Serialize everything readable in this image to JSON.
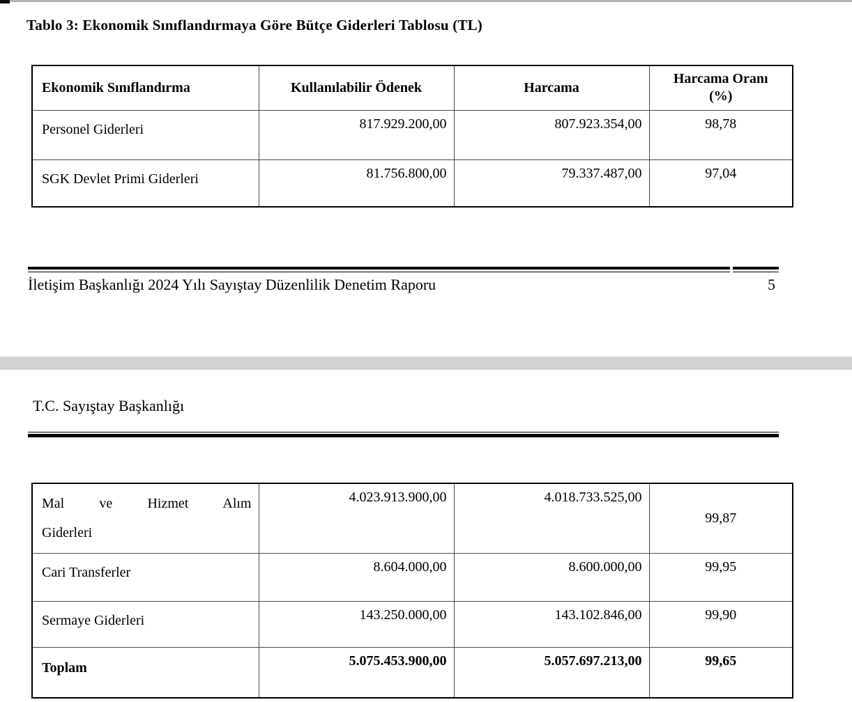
{
  "page1": {
    "table_title": "Tablo 3: Ekonomik Sınıflandırmaya Göre Bütçe Giderleri Tablosu (TL)",
    "footer_text": "İletişim Başkanlığı 2024 Yılı Sayıştay Düzenlilik Denetim Raporu",
    "footer_page_number": "5"
  },
  "page2": {
    "header_text": "T.C. Sayıştay Başkanlığı"
  },
  "table": {
    "columns": [
      "Ekonomik Sınıflandırma",
      "Kullanılabilir Ödenek",
      "Harcama",
      "Harcama Oranı (%)"
    ],
    "page1_rows": [
      {
        "label": "Personel Giderleri",
        "kullanilabilir_odenek": "817.929.200,00",
        "harcama": "807.923.354,00",
        "harcama_orani": "98,78"
      },
      {
        "label": "SGK Devlet Primi Giderleri",
        "kullanilabilir_odenek": "81.756.800,00",
        "harcama": "79.337.487,00",
        "harcama_orani": "97,04"
      }
    ],
    "page2_rows": [
      {
        "label_line1": "Mal ve Hizmet Alım",
        "label_line2": "Giderleri",
        "kullanilabilir_odenek": "4.023.913.900,00",
        "harcama": "4.018.733.525,00",
        "harcama_orani": "99,87"
      },
      {
        "label": "Cari Transferler",
        "kullanilabilir_odenek": "8.604.000,00",
        "harcama": "8.600.000,00",
        "harcama_orani": "99,95"
      },
      {
        "label": "Sermaye Giderleri",
        "kullanilabilir_odenek": "143.250.000,00",
        "harcama": "143.102.846,00",
        "harcama_orani": "99,90"
      },
      {
        "label": "Toplam",
        "kullanilabilir_odenek": "5.075.453.900,00",
        "harcama": "5.057.697.213,00",
        "harcama_orani": "99,65"
      }
    ]
  },
  "colors": {
    "page_break_band": "#d2d2d2",
    "rule_line": "#000000",
    "top_edge_line": "#b3b3b3"
  }
}
